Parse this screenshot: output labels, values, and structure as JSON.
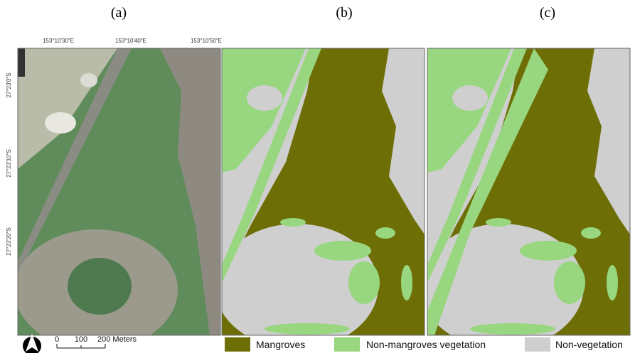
{
  "panels": [
    {
      "label": "(a)"
    },
    {
      "label": "(b)"
    },
    {
      "label": "(c)"
    }
  ],
  "coordinates": {
    "longitude": [
      "153°10'30\"E",
      "153°10'40\"E",
      "153°10'50\"E"
    ],
    "latitude": [
      "27°23'0\"S",
      "27°23'10\"S",
      "27°23'20\"S"
    ]
  },
  "scale_bar": {
    "labels": [
      "0",
      "100",
      "200 Meters"
    ]
  },
  "legend": [
    {
      "label": "Mangroves",
      "color": "#6e6e06"
    },
    {
      "label": "Non-mangroves vegetation",
      "color": "#98d67f"
    },
    {
      "label": "Non-vegetation",
      "color": "#cfcfcf"
    }
  ]
}
